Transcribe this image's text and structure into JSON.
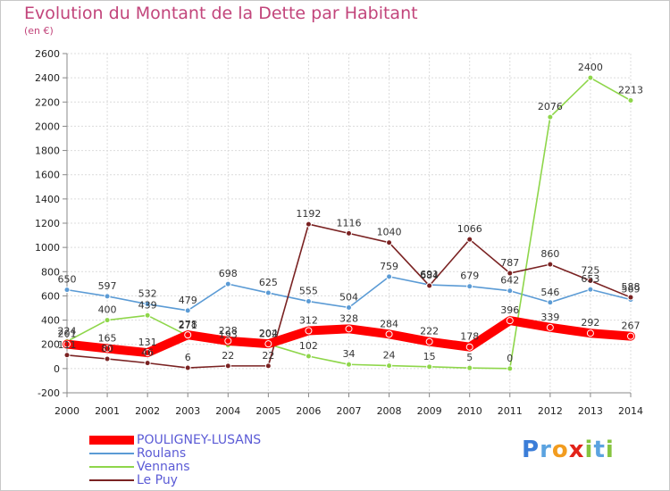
{
  "chart_data": {
    "type": "line",
    "title": "Evolution du Montant de la Dette par Habitant",
    "subtitle": "(en €)",
    "x": [
      "2000",
      "2001",
      "2002",
      "2003",
      "2004",
      "2005",
      "2006",
      "2007",
      "2008",
      "2009",
      "2010",
      "2011",
      "2012",
      "2013",
      "2014"
    ],
    "ylim": [
      -200,
      2600
    ],
    "yticks": [
      -200,
      0,
      200,
      400,
      600,
      800,
      1000,
      1200,
      1400,
      1600,
      1800,
      2000,
      2200,
      2400,
      2600
    ],
    "grid": true,
    "legend_position": "bottom-left",
    "series": [
      {
        "name": "POULIGNEY-LUSANS",
        "color": "#ff0000",
        "values": [
          201,
          165,
          131,
          278,
          228,
          204,
          312,
          328,
          284,
          222,
          178,
          396,
          339,
          292,
          267
        ]
      },
      {
        "name": "Roulans",
        "color": "#5b9bd5",
        "values": [
          650,
          597,
          532,
          479,
          698,
          625,
          555,
          504,
          759,
          691,
          679,
          642,
          546,
          653,
          569
        ]
      },
      {
        "name": "Vennans",
        "color": "#8ed64a",
        "values": [
          224,
          400,
          439,
          271,
          193,
          202,
          102,
          34,
          24,
          15,
          5,
          0,
          2076,
          2400,
          2213
        ]
      },
      {
        "name": "Le Puy",
        "color": "#7a2222",
        "values": [
          111,
          80,
          46,
          6,
          22,
          22,
          1192,
          1116,
          1040,
          684,
          1066,
          787,
          860,
          725,
          588
        ]
      }
    ]
  },
  "logo": {
    "letters": [
      "P",
      "r",
      "o",
      "x",
      "i",
      "t",
      "i"
    ],
    "colors": [
      "#3b7dd8",
      "#5ba3e0",
      "#f29c1f",
      "#e2231a",
      "#86c440",
      "#5ba3e0",
      "#86c440"
    ]
  }
}
